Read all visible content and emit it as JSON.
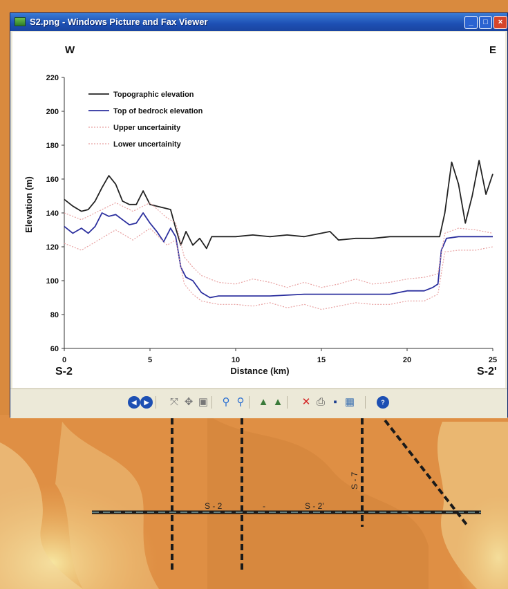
{
  "window": {
    "title": "S2.png - Windows Picture and Fax Viewer",
    "controls": {
      "minimize": "_",
      "maximize": "□",
      "close": "×"
    }
  },
  "chart_data": {
    "type": "line",
    "corner_left": "W",
    "corner_right": "E",
    "section_start": "S-2",
    "section_end": "S-2'",
    "xlabel": "Distance (km)",
    "ylabel": "Elevation (m)",
    "xlim": [
      0,
      25
    ],
    "ylim": [
      60,
      220
    ],
    "xticks": [
      "0",
      "5",
      "10",
      "15",
      "20",
      "25"
    ],
    "yticks": [
      "60",
      "80",
      "100",
      "120",
      "140",
      "160",
      "180",
      "200",
      "220"
    ],
    "legend_position": "top-left",
    "series": [
      {
        "name": "Topographic elevation",
        "color": "#222222",
        "style": "solid",
        "x": [
          0,
          0.5,
          1,
          1.4,
          1.8,
          2.2,
          2.6,
          3,
          3.4,
          3.8,
          4.2,
          4.6,
          5,
          5.4,
          5.8,
          6.2,
          6.5,
          6.8,
          7.1,
          7.5,
          7.9,
          8.3,
          8.6,
          9,
          10,
          11,
          12,
          13,
          14,
          15,
          15.5,
          16,
          17,
          18,
          19,
          20,
          21,
          21.9,
          22.2,
          22.6,
          23,
          23.4,
          23.8,
          24.2,
          24.6,
          25
        ],
        "values": [
          148,
          144,
          141,
          142,
          147,
          155,
          162,
          157,
          147,
          145,
          145,
          153,
          145,
          144,
          143,
          142,
          131,
          121,
          129,
          121,
          125,
          119,
          126,
          126,
          126,
          127,
          126,
          127,
          126,
          128,
          129,
          124,
          125,
          125,
          126,
          126,
          126,
          126,
          140,
          170,
          157,
          134,
          150,
          171,
          151,
          163
        ]
      },
      {
        "name": "Top of bedrock elevation",
        "color": "#2b2f9e",
        "style": "solid",
        "x": [
          0,
          0.5,
          1,
          1.4,
          1.8,
          2.2,
          2.6,
          3,
          3.4,
          3.8,
          4.2,
          4.6,
          5,
          5.4,
          5.8,
          6.2,
          6.5,
          6.8,
          7.1,
          7.5,
          8,
          8.5,
          9,
          10,
          12,
          14,
          16,
          18,
          19,
          20,
          21,
          21.5,
          21.8,
          22,
          22.3,
          23,
          24,
          25
        ],
        "values": [
          132,
          128,
          131,
          128,
          132,
          140,
          138,
          139,
          136,
          133,
          134,
          140,
          134,
          129,
          123,
          131,
          126,
          108,
          102,
          100,
          93,
          90,
          91,
          91,
          91,
          92,
          92,
          92,
          92,
          94,
          94,
          96,
          98,
          118,
          125,
          126,
          126,
          126
        ]
      },
      {
        "name": "Upper uncertainity",
        "color": "#e8a0a0",
        "style": "dotted",
        "x": [
          0,
          1,
          2,
          3,
          4,
          5,
          6,
          6.5,
          7,
          7.5,
          8,
          9,
          10,
          11,
          12,
          13,
          14,
          15,
          16,
          17,
          18,
          19,
          20,
          21,
          21.8,
          22.2,
          23,
          24,
          25
        ],
        "values": [
          140,
          136,
          141,
          146,
          141,
          146,
          137,
          134,
          114,
          108,
          103,
          99,
          98,
          101,
          99,
          96,
          99,
          96,
          98,
          101,
          98,
          99,
          101,
          102,
          104,
          128,
          131,
          130,
          128
        ]
      },
      {
        "name": "Lower uncertainity",
        "color": "#e8a0a0",
        "style": "dotted",
        "x": [
          0,
          1,
          2,
          3,
          4,
          5,
          6,
          6.5,
          7,
          7.5,
          8,
          9,
          10,
          11,
          12,
          13,
          14,
          15,
          16,
          17,
          18,
          19,
          20,
          21,
          21.8,
          22.2,
          23,
          24,
          25
        ],
        "values": [
          122,
          118,
          124,
          130,
          124,
          131,
          121,
          124,
          98,
          92,
          88,
          86,
          86,
          85,
          87,
          84,
          86,
          83,
          85,
          87,
          86,
          86,
          88,
          88,
          92,
          117,
          118,
          118,
          120
        ]
      }
    ]
  },
  "toolbar": {
    "icons": [
      "previous-image-icon",
      "next-image-icon",
      "best-fit-icon",
      "actual-size-icon",
      "slideshow-icon",
      "zoom-in-icon",
      "zoom-out-icon",
      "rotate-clockwise-icon",
      "rotate-counterclockwise-icon",
      "delete-icon",
      "print-icon",
      "save-icon",
      "edit-icon",
      "help-icon"
    ]
  },
  "map": {
    "labels": {
      "s2": "S - 2",
      "s2prime": "S - 2'",
      "s7": "S - 7",
      "dash": "-"
    }
  }
}
